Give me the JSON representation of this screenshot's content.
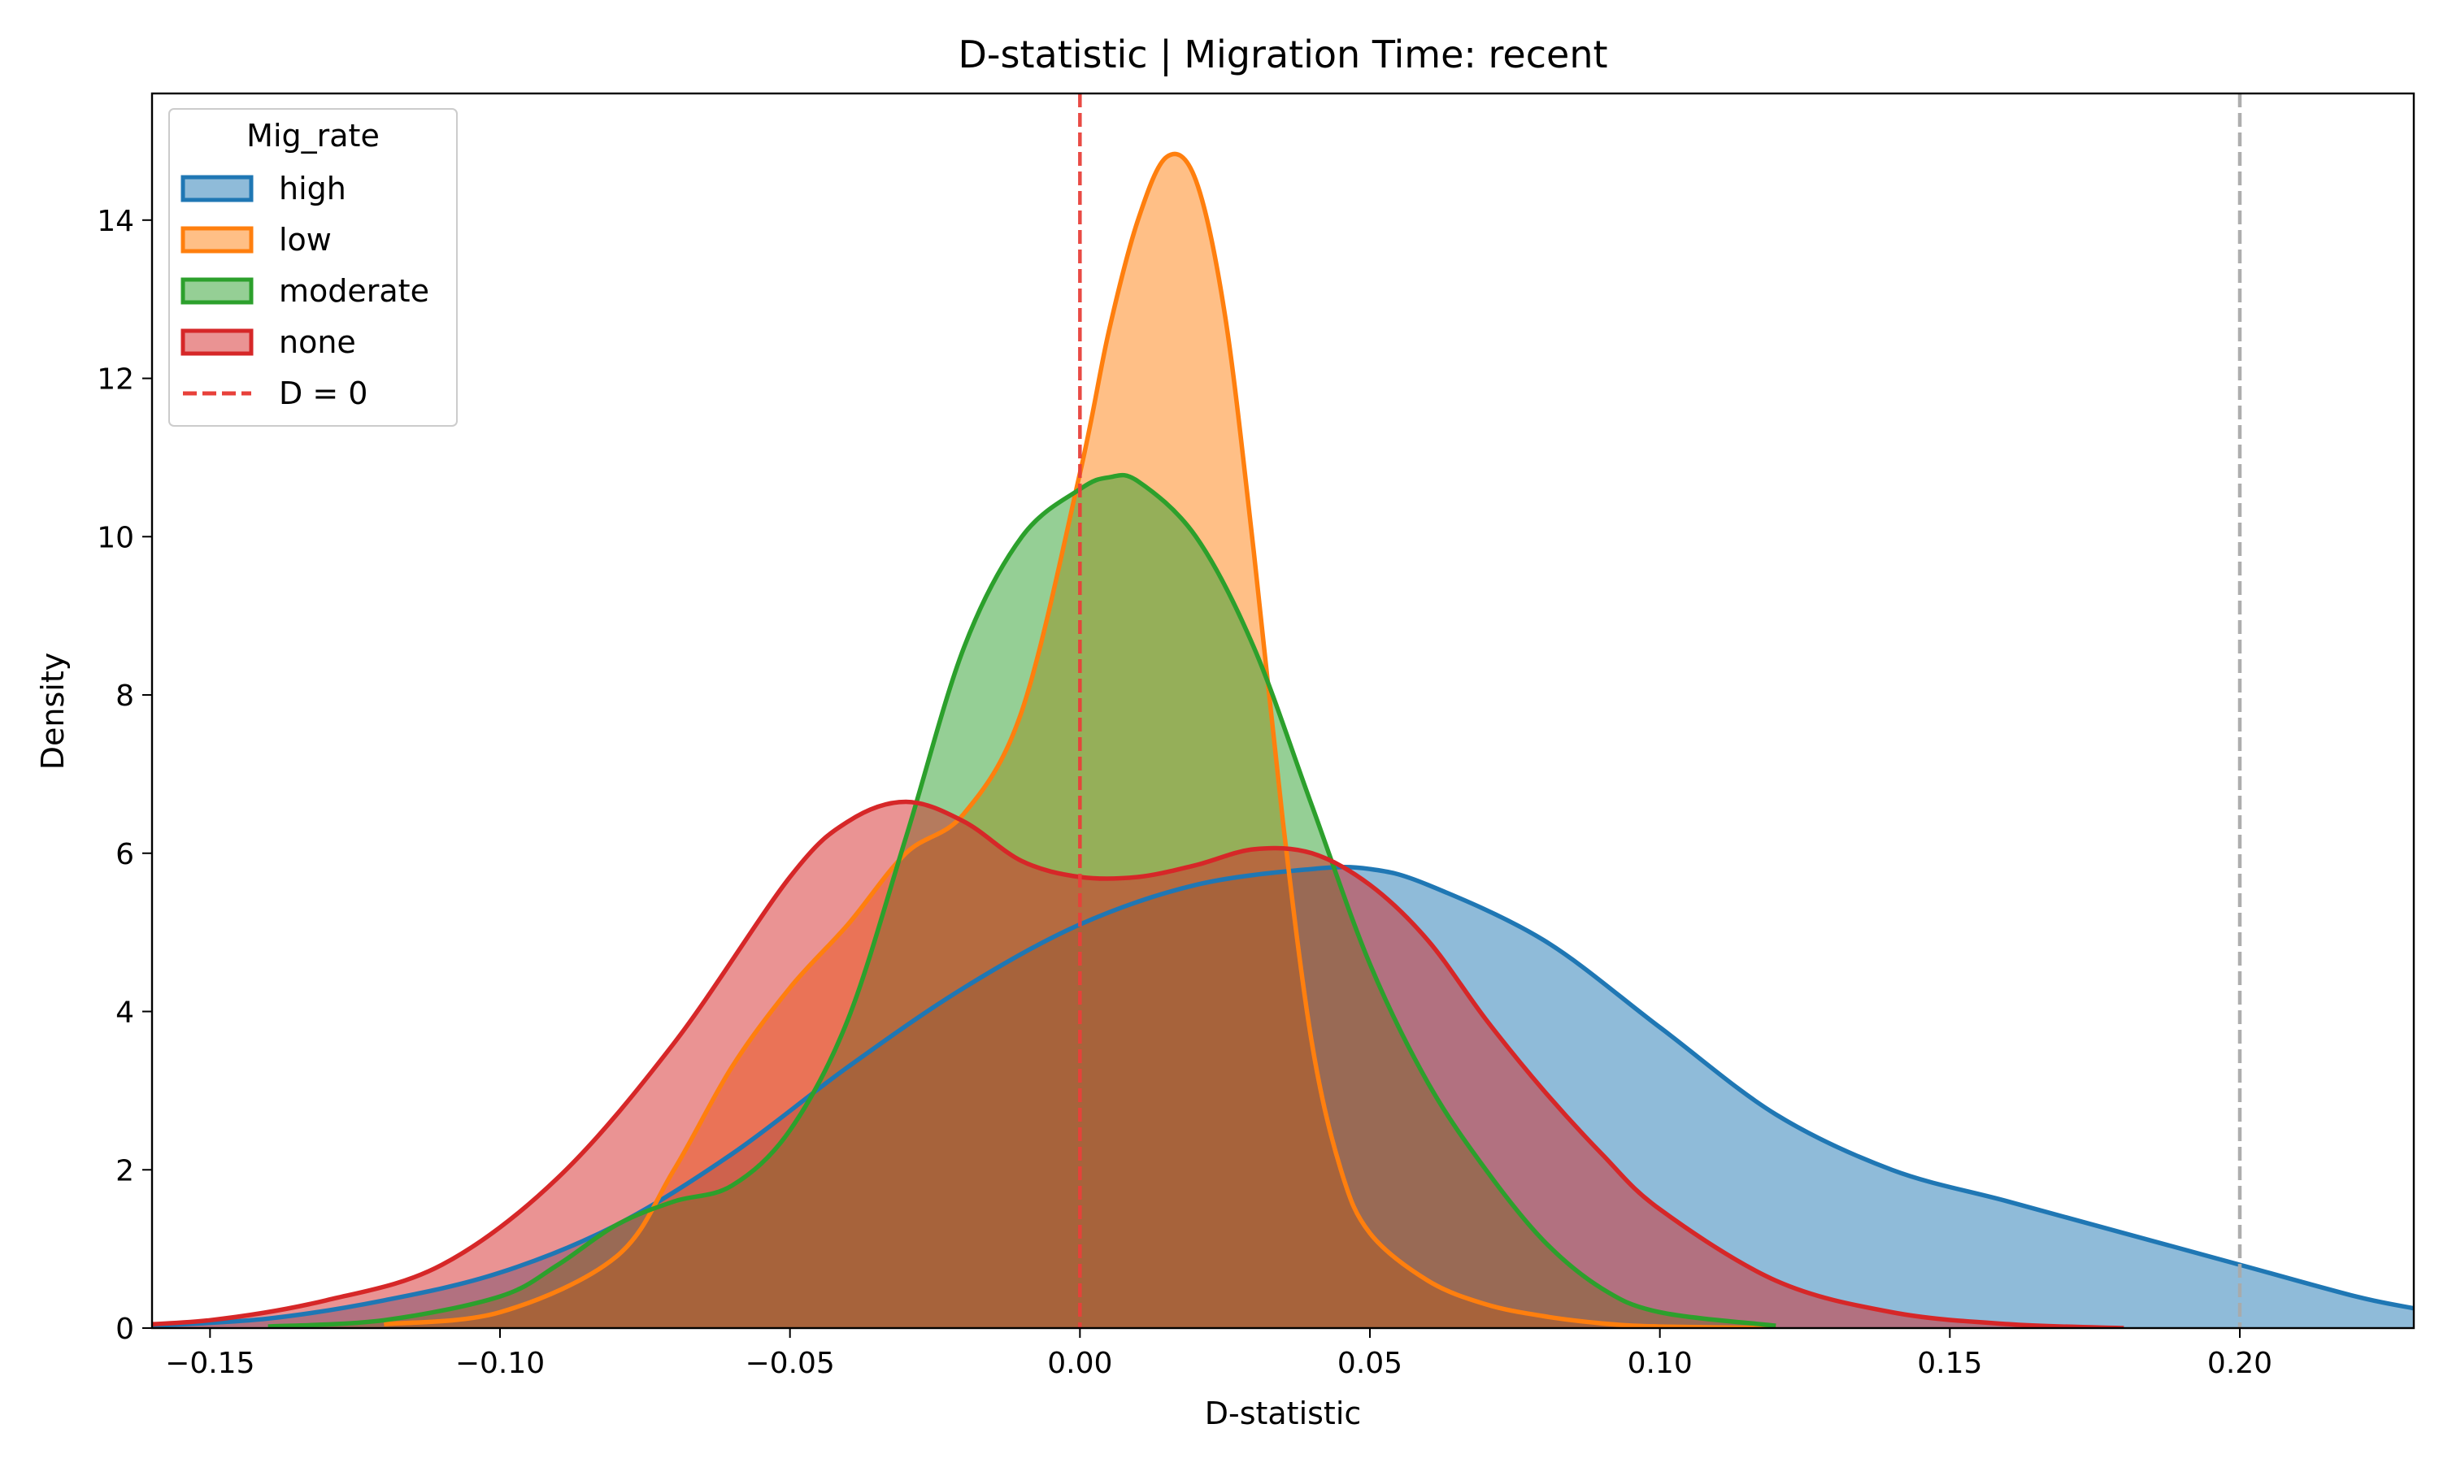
{
  "chart_data": {
    "type": "area",
    "title": "D-statistic | Migration Time: recent",
    "xlabel": "D-statistic",
    "ylabel": "Density",
    "xlim": [
      -0.16,
      0.23
    ],
    "ylim": [
      0,
      15.6
    ],
    "xticks": [
      -0.15,
      -0.1,
      -0.05,
      0.0,
      0.05,
      0.1,
      0.15,
      0.2
    ],
    "xtick_labels": [
      "−0.15",
      "−0.10",
      "−0.05",
      "0.00",
      "0.05",
      "0.10",
      "0.15",
      "0.20"
    ],
    "yticks": [
      0,
      2,
      4,
      6,
      8,
      10,
      12,
      14
    ],
    "ytick_labels": [
      "0",
      "2",
      "4",
      "6",
      "8",
      "10",
      "12",
      "14"
    ],
    "grid": false,
    "legend": {
      "title": "Mig_rate",
      "placement": "top-left",
      "entries": [
        "high",
        "low",
        "moderate",
        "none",
        "D = 0"
      ]
    },
    "reference_lines": [
      {
        "name": "D = 0",
        "x": 0.0,
        "color": "#e8403a",
        "style": "dashed"
      },
      {
        "name": "",
        "x": 0.2,
        "color": "#aaaaaa",
        "style": "dashed"
      }
    ],
    "series": [
      {
        "name": "high",
        "color": "#1f77b4",
        "x": [
          -0.16,
          -0.14,
          -0.12,
          -0.1,
          -0.08,
          -0.06,
          -0.04,
          -0.02,
          0.0,
          0.02,
          0.04,
          0.05,
          0.06,
          0.08,
          0.1,
          0.12,
          0.14,
          0.16,
          0.18,
          0.2,
          0.22,
          0.23
        ],
        "y": [
          0.03,
          0.12,
          0.35,
          0.7,
          1.3,
          2.2,
          3.3,
          4.3,
          5.1,
          5.6,
          5.8,
          5.8,
          5.6,
          4.9,
          3.8,
          2.7,
          2.0,
          1.6,
          1.2,
          0.8,
          0.4,
          0.25
        ]
      },
      {
        "name": "low",
        "color": "#ff7f0e",
        "x": [
          -0.12,
          -0.1,
          -0.08,
          -0.07,
          -0.06,
          -0.05,
          -0.04,
          -0.03,
          -0.02,
          -0.01,
          0.0,
          0.005,
          0.01,
          0.015,
          0.02,
          0.025,
          0.03,
          0.035,
          0.04,
          0.045,
          0.05,
          0.06,
          0.07,
          0.08,
          0.09,
          0.1,
          0.12
        ],
        "y": [
          0.05,
          0.2,
          0.9,
          2.0,
          3.3,
          4.3,
          5.1,
          6.0,
          6.5,
          7.8,
          10.8,
          12.6,
          14.0,
          14.8,
          14.5,
          12.8,
          9.8,
          6.4,
          3.6,
          2.0,
          1.2,
          0.6,
          0.3,
          0.15,
          0.06,
          0.02,
          0.0
        ]
      },
      {
        "name": "moderate",
        "color": "#2ca02c",
        "x": [
          -0.14,
          -0.12,
          -0.1,
          -0.09,
          -0.08,
          -0.07,
          -0.06,
          -0.05,
          -0.04,
          -0.03,
          -0.02,
          -0.01,
          0.0,
          0.005,
          0.01,
          0.02,
          0.03,
          0.04,
          0.05,
          0.06,
          0.07,
          0.08,
          0.09,
          0.1,
          0.12
        ],
        "y": [
          0.02,
          0.1,
          0.4,
          0.8,
          1.3,
          1.6,
          1.8,
          2.5,
          3.9,
          6.2,
          8.6,
          10.0,
          10.6,
          10.75,
          10.7,
          10.0,
          8.6,
          6.6,
          4.6,
          3.1,
          2.0,
          1.1,
          0.5,
          0.2,
          0.03
        ]
      },
      {
        "name": "none",
        "color": "#d62728",
        "x": [
          -0.17,
          -0.15,
          -0.13,
          -0.11,
          -0.09,
          -0.07,
          -0.05,
          -0.04,
          -0.03,
          -0.02,
          -0.01,
          0.0,
          0.01,
          0.02,
          0.03,
          0.04,
          0.05,
          0.06,
          0.07,
          0.08,
          0.09,
          0.1,
          0.12,
          0.14,
          0.16,
          0.18
        ],
        "y": [
          0.02,
          0.1,
          0.35,
          0.8,
          1.9,
          3.6,
          5.7,
          6.4,
          6.65,
          6.4,
          5.9,
          5.7,
          5.7,
          5.85,
          6.05,
          6.0,
          5.6,
          4.9,
          3.9,
          3.0,
          2.2,
          1.5,
          0.6,
          0.2,
          0.05,
          0.0
        ]
      }
    ]
  }
}
